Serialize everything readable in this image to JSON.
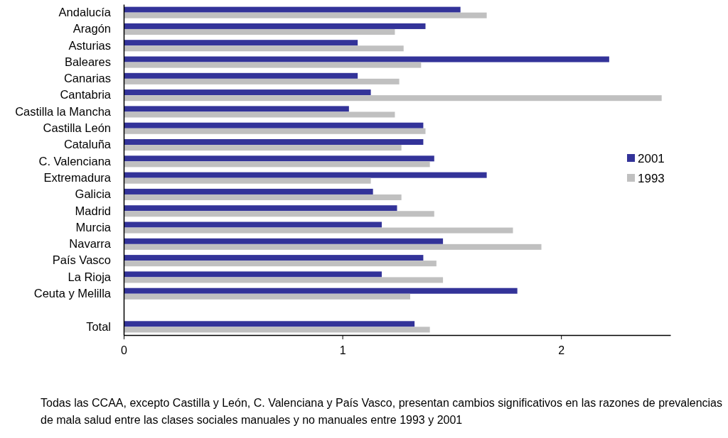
{
  "chart_data": {
    "type": "bar",
    "orientation": "horizontal",
    "categories": [
      "Andalucía",
      "Aragón",
      "Asturias",
      "Baleares",
      "Canarias",
      "Cantabria",
      "Castilla la Mancha",
      "Castilla León",
      "Cataluña",
      "C. Valenciana",
      "Extremadura",
      "Galicia",
      "Madrid",
      "Murcia",
      "Navarra",
      "País Vasco",
      "La Rioja",
      "Ceuta y Melilla",
      null,
      "Total"
    ],
    "series": [
      {
        "name": "2001",
        "color": "#333399",
        "values": [
          1.54,
          1.38,
          1.07,
          2.22,
          1.07,
          1.13,
          1.03,
          1.37,
          1.37,
          1.42,
          1.66,
          1.14,
          1.25,
          1.18,
          1.46,
          1.37,
          1.18,
          1.8,
          null,
          1.33
        ]
      },
      {
        "name": "1993",
        "color": "#c0c0c0",
        "values": [
          1.66,
          1.24,
          1.28,
          1.36,
          1.26,
          2.46,
          1.24,
          1.38,
          1.27,
          1.4,
          1.13,
          1.27,
          1.42,
          1.78,
          1.91,
          1.43,
          1.46,
          1.31,
          null,
          1.4
        ]
      }
    ],
    "xlim": [
      0,
      2.5
    ],
    "xticks": [
      0,
      1,
      2
    ],
    "legend": "right",
    "annotations": [
      "Todas las CCAA, excepto Castilla y León, C. Valenciana y País Vasco, presentan cambios significativos en las razones de prevalencias de mala salud entre las clases sociales manuales y no manuales entre 1993 y 2001"
    ]
  }
}
